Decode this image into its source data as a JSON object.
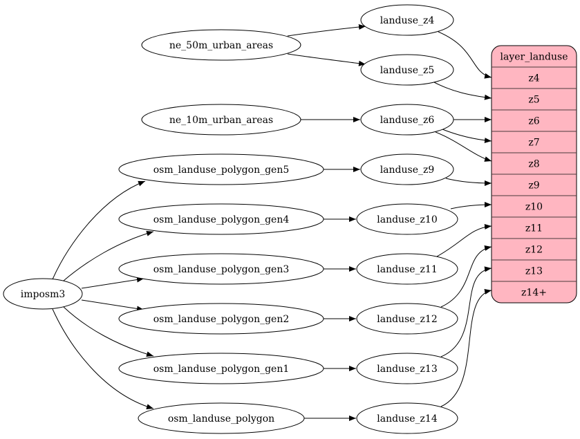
{
  "colors": {
    "record_fill": "#ffb6c1",
    "stroke": "#000000",
    "record_divider": "#4a3a3c"
  },
  "nodes": {
    "imposm3": "imposm3",
    "ne_50m": "ne_50m_urban_areas",
    "ne_10m": "ne_10m_urban_areas",
    "gen5": "osm_landuse_polygon_gen5",
    "gen4": "osm_landuse_polygon_gen4",
    "gen3": "osm_landuse_polygon_gen3",
    "gen2": "osm_landuse_polygon_gen2",
    "gen1": "osm_landuse_polygon_gen1",
    "poly": "osm_landuse_polygon",
    "lz4": "landuse_z4",
    "lz5": "landuse_z5",
    "lz6": "landuse_z6",
    "lz9": "landuse_z9",
    "lz10": "landuse_z10",
    "lz11": "landuse_z11",
    "lz12": "landuse_z12",
    "lz13": "landuse_z13",
    "lz14": "landuse_z14"
  },
  "record": {
    "title": "layer_landuse",
    "fields": [
      "z4",
      "z5",
      "z6",
      "z7",
      "z8",
      "z9",
      "z10",
      "z11",
      "z12",
      "z13",
      "z14+"
    ]
  },
  "edges": [
    [
      "imposm3",
      "gen5"
    ],
    [
      "imposm3",
      "gen4"
    ],
    [
      "imposm3",
      "gen3"
    ],
    [
      "imposm3",
      "gen2"
    ],
    [
      "imposm3",
      "gen1"
    ],
    [
      "imposm3",
      "poly"
    ],
    [
      "ne_50m",
      "lz4"
    ],
    [
      "ne_50m",
      "lz5"
    ],
    [
      "ne_10m",
      "lz6"
    ],
    [
      "gen5",
      "lz9"
    ],
    [
      "gen4",
      "lz10"
    ],
    [
      "gen3",
      "lz11"
    ],
    [
      "gen2",
      "lz12"
    ],
    [
      "gen1",
      "lz13"
    ],
    [
      "poly",
      "lz14"
    ],
    [
      "lz4",
      "z4"
    ],
    [
      "lz5",
      "z5"
    ],
    [
      "lz6",
      "z6"
    ],
    [
      "lz6",
      "z7"
    ],
    [
      "lz6",
      "z8"
    ],
    [
      "lz9",
      "z9"
    ],
    [
      "lz10",
      "z10"
    ],
    [
      "lz11",
      "z11"
    ],
    [
      "lz12",
      "z12"
    ],
    [
      "lz13",
      "z13"
    ],
    [
      "lz14",
      "z14+"
    ]
  ]
}
